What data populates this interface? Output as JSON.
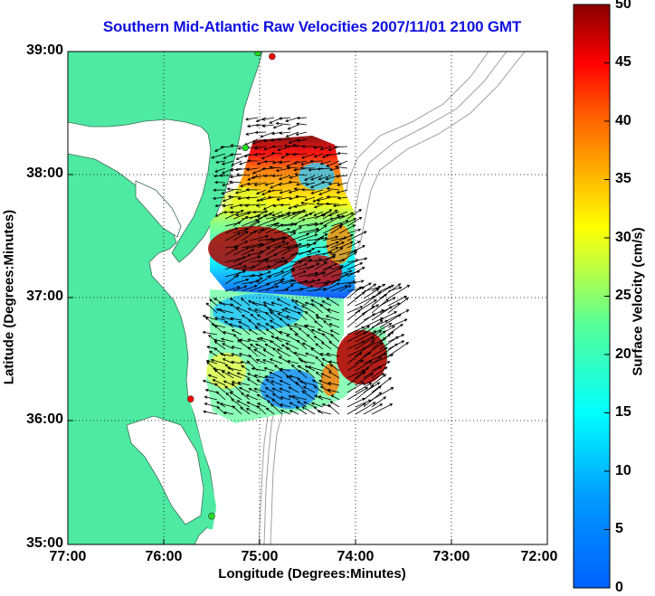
{
  "title": "Southern Mid-Atlantic Raw Velocities 2007/11/01 2100 GMT",
  "x_axis": {
    "label": "Longitude (Degrees:Minutes)",
    "ticks": [
      "77:00",
      "76:00",
      "75:00",
      "74:00",
      "73:00",
      "72:00"
    ]
  },
  "y_axis": {
    "label": "Latitude (Degrees:Minutes)",
    "ticks": [
      "39:00",
      "38:00",
      "37:00",
      "36:00",
      "35:00"
    ]
  },
  "colorbar": {
    "label": "Surface Velocity (cm/s)",
    "ticks": [
      "50",
      "45",
      "40",
      "35",
      "30",
      "25",
      "20",
      "15",
      "10",
      "5",
      "0"
    ],
    "range": [
      0,
      50
    ],
    "colormap": "jet"
  },
  "colors": {
    "land": "#4eeaa3",
    "water": "#ffffff",
    "title": "#1010e0",
    "bathymetry": "#a0a0a0",
    "station_active": "#ff0000",
    "station_inactive": "#22dd22"
  },
  "map": {
    "lon_range": [
      -77,
      -72
    ],
    "lat_range": [
      35,
      39
    ],
    "grid": "dotted",
    "stations": [
      {
        "lon": -74.87,
        "lat": 38.96,
        "status": "active"
      },
      {
        "lon": -75.02,
        "lat": 38.99,
        "status": "inactive"
      },
      {
        "lon": -75.15,
        "lat": 38.22,
        "status": "inactive"
      },
      {
        "lon": -75.72,
        "lat": 36.18,
        "status": "active"
      },
      {
        "lon": -75.5,
        "lat": 35.23,
        "status": "inactive"
      }
    ]
  }
}
